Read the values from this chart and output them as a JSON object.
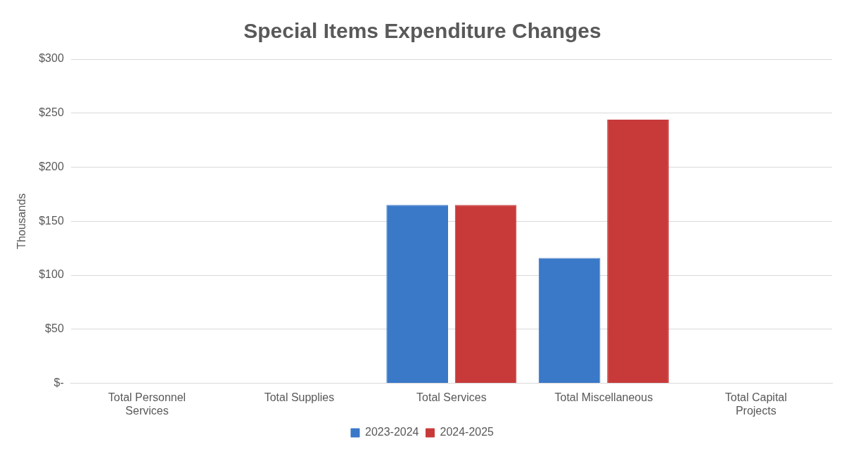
{
  "chart_data": {
    "type": "bar",
    "title": "Special Items Expenditure Changes",
    "ylabel": "Thousands",
    "categories": [
      "Total Personnel Services",
      "Total Supplies",
      "Total Services",
      "Total Miscellaneous",
      "Total Capital Projects"
    ],
    "series": [
      {
        "name": "2023-2024",
        "color": "#3a78c8",
        "values": [
          0,
          0,
          165,
          116,
          0
        ]
      },
      {
        "name": "2024-2025",
        "color": "#c83a3a",
        "values": [
          0,
          0,
          165,
          244,
          0
        ]
      }
    ],
    "ylim": [
      0,
      300
    ],
    "yticks": [
      {
        "value": 0,
        "label": "$-"
      },
      {
        "value": 50,
        "label": "$50"
      },
      {
        "value": 100,
        "label": "$100"
      },
      {
        "value": 150,
        "label": "$150"
      },
      {
        "value": 200,
        "label": "$200"
      },
      {
        "value": 250,
        "label": "$250"
      },
      {
        "value": 300,
        "label": "$300"
      }
    ],
    "grid": "y",
    "legend": "bottom"
  }
}
